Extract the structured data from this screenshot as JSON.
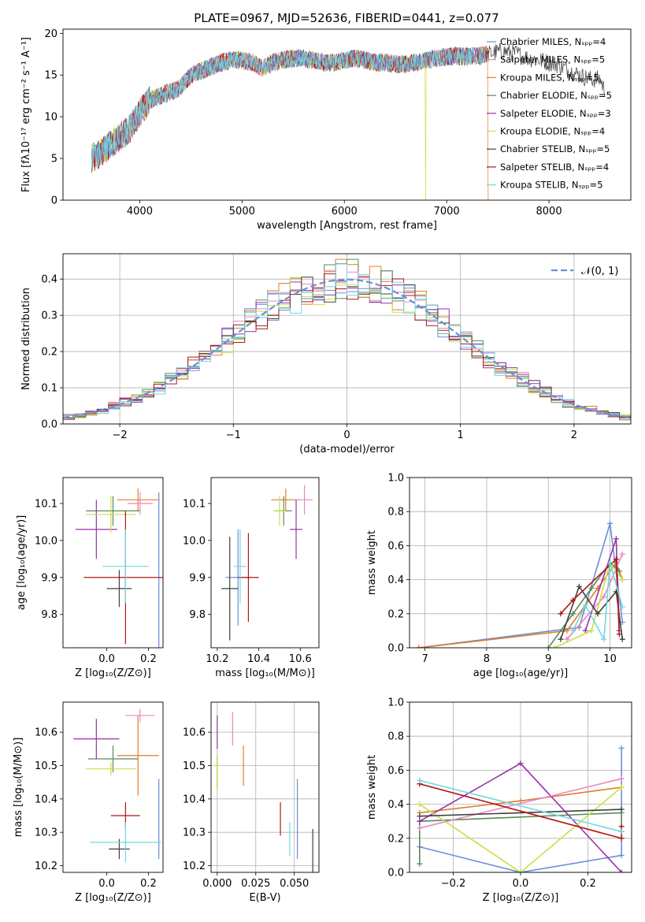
{
  "colors": {
    "palette": [
      "#6a8fd8",
      "#e07c2a",
      "#5a8a5a",
      "#9b30a8",
      "#e888c0",
      "#c8e048",
      "#404040",
      "#b01818",
      "#70d8e0"
    ]
  },
  "chart_data": [
    {
      "id": "spectrum",
      "type": "line",
      "title": "PLATE=0967, MJD=52636, FIBERID=0441, z=0.077",
      "xlabel": "wavelength [Angstrom, rest frame]",
      "ylabel": "Flux [fλ10⁻¹⁷ erg cm⁻² s⁻¹ A⁻¹]",
      "xlim": [
        3250,
        8800
      ],
      "ylim": [
        0,
        20.5
      ],
      "xticks": [
        4000,
        5000,
        6000,
        7000,
        8000
      ],
      "yticks": [
        0,
        5,
        10,
        15,
        20
      ],
      "legend_position": "right",
      "series": [
        {
          "name": "Chabrier MILES, Nₛₚₚ=4",
          "color_index": 0
        },
        {
          "name": "Salpeter MILES, Nₛₚₚ=5",
          "color_index": 4
        },
        {
          "name": "Kroupa MILES, Nₛₚₚ=5",
          "color_index": 1
        },
        {
          "name": "Chabrier ELODIE, Nₛₚₚ=5",
          "color_index": 2
        },
        {
          "name": "Salpeter ELODIE, Nₛₚₚ=3",
          "color_index": 3
        },
        {
          "name": "Kroupa ELODIE, Nₛₚₚ=4",
          "color_index": 5
        },
        {
          "name": "Chabrier STELIB, Nₛₚₚ=5",
          "color_index": 6
        },
        {
          "name": "Salpeter STELIB, Nₛₚₚ=4",
          "color_index": 7
        },
        {
          "name": "Kroupa STELIB, Nₛₚₚ=5",
          "color_index": 8
        }
      ],
      "continuum": {
        "x": [
          3530,
          3600,
          3700,
          3800,
          3900,
          3950,
          4000,
          4100,
          4200,
          4300,
          4400,
          4500,
          4600,
          4700,
          4800,
          4900,
          5000,
          5100,
          5200,
          5300,
          5400,
          5500,
          5600,
          5700,
          5800,
          5900,
          6000,
          6100,
          6200,
          6300,
          6400,
          6500,
          6600,
          6700,
          6800,
          6900,
          7000,
          7100,
          7200,
          7300,
          7400,
          7500,
          7600,
          7700,
          7800,
          7900,
          8000,
          8100,
          8200,
          8300,
          8400,
          8500,
          8550
        ],
        "y": [
          5.0,
          5.5,
          6.5,
          7.5,
          8.5,
          9.5,
          10.5,
          12.0,
          12.5,
          13.0,
          13.5,
          15.0,
          15.5,
          16.0,
          16.5,
          16.8,
          16.8,
          16.5,
          15.8,
          16.5,
          16.8,
          17.0,
          17.0,
          16.8,
          16.5,
          16.5,
          16.8,
          17.0,
          16.8,
          16.5,
          16.5,
          16.3,
          16.3,
          16.5,
          16.8,
          17.0,
          17.2,
          17.3,
          17.2,
          17.3,
          17.5,
          17.8,
          17.8,
          17.5,
          17.0,
          16.8,
          16.5,
          16.2,
          15.5,
          15.0,
          14.5,
          14.5,
          13.0
        ]
      }
    },
    {
      "id": "residuals",
      "type": "line",
      "xlabel": "(data-model)/error",
      "ylabel": "Normed distribution",
      "xlim": [
        -2.5,
        2.5
      ],
      "ylim": [
        0,
        0.47
      ],
      "xticks": [
        -2,
        -1,
        0,
        1,
        2
      ],
      "yticks": [
        0.0,
        0.1,
        0.2,
        0.3,
        0.4
      ],
      "grid": true,
      "legend_position": "top-right",
      "gaussian_label": "𝒩(0, 1)",
      "gaussian": {
        "mean": 0,
        "sigma": 1
      }
    },
    {
      "id": "age-vs-z",
      "type": "scatter",
      "xlabel": "Z [log₁₀(Z/Z⊙)]",
      "ylabel": "age  [log₁₀(age/yr)]",
      "xlim": [
        -0.21,
        0.27
      ],
      "ylim": [
        9.71,
        10.17
      ],
      "xticks": [
        0.0,
        0.2
      ],
      "yticks": [
        9.8,
        9.9,
        10.0,
        10.1
      ],
      "points": [
        {
          "x": 0.25,
          "y": 9.9,
          "xerr": 0.0,
          "yerr": 0.23,
          "color_index": 0
        },
        {
          "x": 0.15,
          "y": 10.11,
          "xerr": 0.1,
          "yerr": 0.03,
          "color_index": 1
        },
        {
          "x": 0.03,
          "y": 10.08,
          "xerr": 0.13,
          "yerr": 0.04,
          "color_index": 2
        },
        {
          "x": -0.05,
          "y": 10.03,
          "xerr": 0.1,
          "yerr": 0.08,
          "color_index": 3
        },
        {
          "x": 0.16,
          "y": 10.1,
          "xerr": 0.06,
          "yerr": 0.03,
          "color_index": 4
        },
        {
          "x": 0.02,
          "y": 10.07,
          "xerr": 0.12,
          "yerr": 0.05,
          "color_index": 5
        },
        {
          "x": 0.06,
          "y": 9.87,
          "xerr": 0.06,
          "yerr": 0.05,
          "color_index": 6
        },
        {
          "x": 0.09,
          "y": 9.9,
          "xerr": 0.2,
          "yerr": 0.18,
          "color_index": 7
        },
        {
          "x": 0.09,
          "y": 9.93,
          "xerr": 0.11,
          "yerr": 0.1,
          "color_index": 8
        }
      ]
    },
    {
      "id": "age-vs-mass",
      "type": "scatter",
      "xlabel": "mass [log₁₀(M/M⊙)]",
      "ylabel": "",
      "xlim": [
        10.17,
        10.69
      ],
      "ylim": [
        9.71,
        10.17
      ],
      "xticks": [
        10.2,
        10.4,
        10.6
      ],
      "yticks": [
        9.8,
        9.9,
        10.0,
        10.1
      ],
      "points": [
        {
          "x": 10.3,
          "y": 9.9,
          "xerr": 0.06,
          "yerr": 0.13,
          "color_index": 0
        },
        {
          "x": 10.53,
          "y": 10.11,
          "xerr": 0.07,
          "yerr": 0.03,
          "color_index": 1
        },
        {
          "x": 10.52,
          "y": 10.08,
          "xerr": 0.04,
          "yerr": 0.04,
          "color_index": 2
        },
        {
          "x": 10.58,
          "y": 10.03,
          "xerr": 0.03,
          "yerr": 0.08,
          "color_index": 3
        },
        {
          "x": 10.62,
          "y": 10.11,
          "xerr": 0.04,
          "yerr": 0.04,
          "color_index": 4
        },
        {
          "x": 10.5,
          "y": 10.08,
          "xerr": 0.03,
          "yerr": 0.04,
          "color_index": 5
        },
        {
          "x": 10.26,
          "y": 9.87,
          "xerr": 0.04,
          "yerr": 0.14,
          "color_index": 6
        },
        {
          "x": 10.35,
          "y": 9.9,
          "xerr": 0.05,
          "yerr": 0.12,
          "color_index": 7
        },
        {
          "x": 10.31,
          "y": 9.93,
          "xerr": 0.03,
          "yerr": 0.1,
          "color_index": 8
        }
      ]
    },
    {
      "id": "weight-vs-age",
      "type": "line",
      "xlabel": "age  [log₁₀(age/yr)]",
      "ylabel": "mass weight",
      "xlim": [
        6.75,
        10.35
      ],
      "ylim": [
        0,
        1.0
      ],
      "xticks": [
        7,
        8,
        9,
        10
      ],
      "yticks": [
        0.0,
        0.2,
        0.4,
        0.6,
        0.8,
        1.0
      ],
      "grid": true,
      "series": [
        {
          "color_index": 0,
          "x": [
            6.9,
            9.5,
            10.0,
            10.2
          ],
          "y": [
            0.0,
            0.12,
            0.73,
            0.15
          ]
        },
        {
          "color_index": 1,
          "x": [
            6.9,
            9.3,
            9.8,
            10.1,
            10.2
          ],
          "y": [
            0.0,
            0.1,
            0.35,
            0.5,
            0.4
          ]
        },
        {
          "color_index": 2,
          "x": [
            9.0,
            9.4,
            9.7,
            10.0,
            10.15
          ],
          "y": [
            0.0,
            0.2,
            0.35,
            0.5,
            0.45
          ]
        },
        {
          "color_index": 3,
          "x": [
            9.6,
            10.1,
            10.15
          ],
          "y": [
            0.1,
            0.64,
            0.1
          ]
        },
        {
          "color_index": 4,
          "x": [
            9.3,
            9.9,
            10.2
          ],
          "y": [
            0.05,
            0.3,
            0.55
          ]
        },
        {
          "color_index": 5,
          "x": [
            9.1,
            9.7,
            10.0,
            10.2
          ],
          "y": [
            0.0,
            0.1,
            0.5,
            0.4
          ]
        },
        {
          "color_index": 6,
          "x": [
            9.2,
            9.5,
            9.8,
            10.1,
            10.2
          ],
          "y": [
            0.05,
            0.36,
            0.2,
            0.33,
            0.05
          ]
        },
        {
          "color_index": 7,
          "x": [
            9.2,
            9.4,
            10.1,
            10.15
          ],
          "y": [
            0.2,
            0.28,
            0.52,
            0.08
          ]
        },
        {
          "color_index": 8,
          "x": [
            9.4,
            9.6,
            9.9,
            10.0,
            10.2
          ],
          "y": [
            0.1,
            0.25,
            0.05,
            0.5,
            0.24
          ]
        }
      ]
    },
    {
      "id": "mass-vs-z",
      "type": "scatter",
      "xlabel": "Z [log₁₀(Z/Z⊙)]",
      "ylabel": "mass [log₁₀(M/M⊙)]",
      "xlim": [
        -0.21,
        0.27
      ],
      "ylim": [
        10.18,
        10.69
      ],
      "xticks": [
        0.0,
        0.2
      ],
      "yticks": [
        10.2,
        10.3,
        10.4,
        10.5,
        10.6
      ],
      "points": [
        {
          "x": 0.25,
          "y": 10.34,
          "xerr": 0.0,
          "yerr": 0.12,
          "color_index": 0
        },
        {
          "x": 0.15,
          "y": 10.53,
          "xerr": 0.1,
          "yerr": 0.12,
          "color_index": 1
        },
        {
          "x": 0.03,
          "y": 10.52,
          "xerr": 0.12,
          "yerr": 0.04,
          "color_index": 2
        },
        {
          "x": -0.05,
          "y": 10.58,
          "xerr": 0.11,
          "yerr": 0.06,
          "color_index": 3
        },
        {
          "x": 0.16,
          "y": 10.65,
          "xerr": 0.07,
          "yerr": 0.02,
          "color_index": 4
        },
        {
          "x": 0.02,
          "y": 10.49,
          "xerr": 0.12,
          "yerr": 0.02,
          "color_index": 5
        },
        {
          "x": 0.06,
          "y": 10.25,
          "xerr": 0.05,
          "yerr": 0.03,
          "color_index": 6
        },
        {
          "x": 0.09,
          "y": 10.35,
          "xerr": 0.07,
          "yerr": 0.04,
          "color_index": 7
        },
        {
          "x": 0.09,
          "y": 10.27,
          "xerr": 0.17,
          "yerr": 0.06,
          "color_index": 8
        }
      ]
    },
    {
      "id": "mass-vs-ebv",
      "type": "scatter",
      "xlabel": "E(B-V)",
      "ylabel": "",
      "xlim": [
        -0.004,
        0.066
      ],
      "ylim": [
        10.18,
        10.69
      ],
      "xticks": [
        0.0,
        0.025,
        0.05
      ],
      "yticks": [
        10.2,
        10.3,
        10.4,
        10.5,
        10.6
      ],
      "grid": true,
      "points": [
        {
          "x": 0.052,
          "y": 10.34,
          "xerr": 0.0,
          "yerr": 0.12,
          "color_index": 0
        },
        {
          "x": 0.017,
          "y": 10.5,
          "xerr": 0.0,
          "yerr": 0.06,
          "color_index": 1
        },
        {
          "x": 0.0,
          "y": 10.48,
          "xerr": 0.0,
          "yerr": 0.05,
          "color_index": 2
        },
        {
          "x": 0.0,
          "y": 10.6,
          "xerr": 0.0,
          "yerr": 0.05,
          "color_index": 3
        },
        {
          "x": 0.01,
          "y": 10.61,
          "xerr": 0.0,
          "yerr": 0.05,
          "color_index": 4
        },
        {
          "x": 0.0,
          "y": 10.48,
          "xerr": 0.0,
          "yerr": 0.05,
          "color_index": 5
        },
        {
          "x": 0.062,
          "y": 10.24,
          "xerr": 0.0,
          "yerr": 0.07,
          "color_index": 6
        },
        {
          "x": 0.041,
          "y": 10.34,
          "xerr": 0.0,
          "yerr": 0.05,
          "color_index": 7
        },
        {
          "x": 0.047,
          "y": 10.28,
          "xerr": 0.0,
          "yerr": 0.05,
          "color_index": 8
        }
      ]
    },
    {
      "id": "weight-vs-z",
      "type": "line",
      "xlabel": "Z [log₁₀(Z/Z⊙)]",
      "ylabel": "mass weight",
      "xlim": [
        -0.33,
        0.33
      ],
      "ylim": [
        0,
        1.0
      ],
      "xticks": [
        -0.2,
        0.0,
        0.2
      ],
      "yticks": [
        0.0,
        0.2,
        0.4,
        0.6,
        0.8,
        1.0
      ],
      "grid": true,
      "series": [
        {
          "color_index": 0,
          "x": [
            -0.3,
            0.0,
            0.3,
            0.3
          ],
          "y": [
            0.15,
            0.0,
            0.1,
            0.73
          ]
        },
        {
          "color_index": 1,
          "x": [
            -0.3,
            0.0,
            0.3
          ],
          "y": [
            0.35,
            0.42,
            0.5
          ]
        },
        {
          "color_index": 2,
          "x": [
            -0.3,
            -0.3,
            0.3,
            0.3
          ],
          "y": [
            0.05,
            0.3,
            0.35,
            0.24
          ]
        },
        {
          "color_index": 3,
          "x": [
            -0.3,
            0.0,
            0.3
          ],
          "y": [
            0.3,
            0.64,
            0.0
          ]
        },
        {
          "color_index": 4,
          "x": [
            -0.3,
            0.3
          ],
          "y": [
            0.26,
            0.55
          ]
        },
        {
          "color_index": 5,
          "x": [
            -0.3,
            0.0,
            0.3
          ],
          "y": [
            0.4,
            0.0,
            0.5
          ]
        },
        {
          "color_index": 6,
          "x": [
            -0.3,
            0.3
          ],
          "y": [
            0.33,
            0.37
          ]
        },
        {
          "color_index": 7,
          "x": [
            -0.3,
            0.3,
            0.3
          ],
          "y": [
            0.52,
            0.2,
            0.27
          ]
        },
        {
          "color_index": 8,
          "x": [
            -0.3,
            0.3
          ],
          "y": [
            0.54,
            0.24
          ]
        }
      ]
    }
  ]
}
